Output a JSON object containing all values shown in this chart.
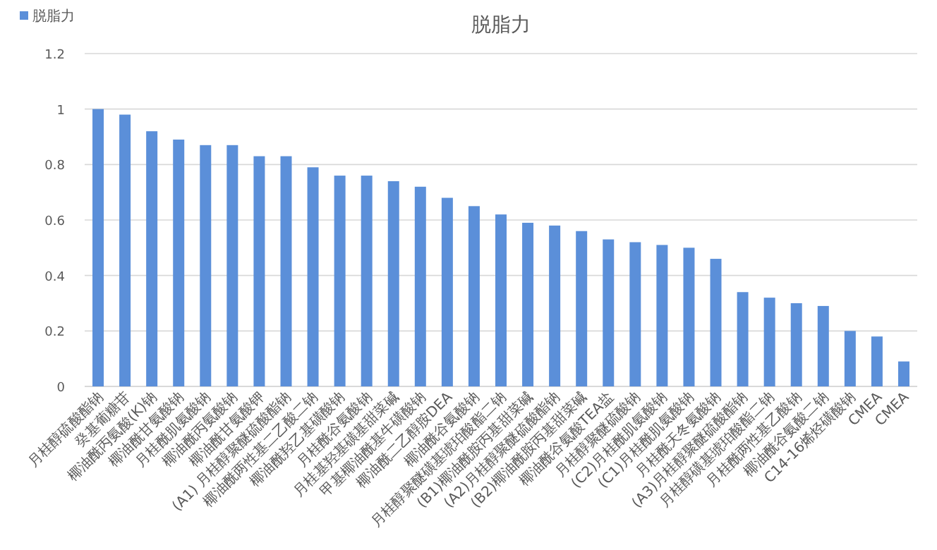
{
  "chart_data": {
    "type": "bar",
    "title": "脱脂力",
    "categories": [
      "月桂醇硫酸酯钠",
      "癸基葡糖苷",
      "椰油酰丙氨酸(K)钠",
      "椰油酰甘氨酸钠",
      "月桂酰肌氨酸钠",
      "椰油酰丙氨酸钠",
      "椰油酰甘氨酸钾",
      "(A1) 月桂醇聚醚硫酸酯钠",
      "椰油酰两性基二乙酸二钠",
      "椰油酰羟乙基磺酸钠",
      "月桂酰谷氨酸钠",
      "月桂基羟基磺基甜菜碱",
      "甲基椰油酰基牛磺酸钠",
      "椰油酰二乙醇胺DEA",
      "椰油酰谷氨酸钠",
      "月桂醇聚醚磺基琥珀酸酯二钠",
      "(B1)椰油酰胺丙基甜菜碱",
      "(A2)月桂醇聚醚硫酸酯钠",
      "(B2)椰油酰胺丙基甜菜碱",
      "椰油酰谷氨酸TEA盐",
      "月桂醇聚醚硫酸钠",
      "(C2)月桂酰肌氨酸钠",
      "(C1)月桂酰肌氨酸钠",
      "月桂酰天冬氨酸钠",
      "(A3)月桂醇聚醚硫酸酯钠",
      "月桂醇磺基琥珀酸酯二钠",
      "月桂酰两性基乙酸钠",
      "椰油酰谷氨酸二钠",
      "C14-16烯烃磺酸钠",
      "CMEA",
      "CMEA"
    ],
    "series": [
      {
        "name": "脱脂力",
        "color": "#5b8fd9",
        "values": [
          1.0,
          0.98,
          0.92,
          0.89,
          0.87,
          0.87,
          0.83,
          0.83,
          0.79,
          0.76,
          0.76,
          0.74,
          0.72,
          0.68,
          0.65,
          0.62,
          0.59,
          0.58,
          0.56,
          0.53,
          0.52,
          0.51,
          0.5,
          0.46,
          0.34,
          0.32,
          0.3,
          0.29,
          0.2,
          0.18,
          0.09
        ]
      }
    ],
    "ylim": [
      0,
      1.2
    ],
    "yticks": [
      0,
      0.2,
      0.4,
      0.6,
      0.8,
      1,
      1.2
    ],
    "grid": "y",
    "legend": "top left"
  }
}
